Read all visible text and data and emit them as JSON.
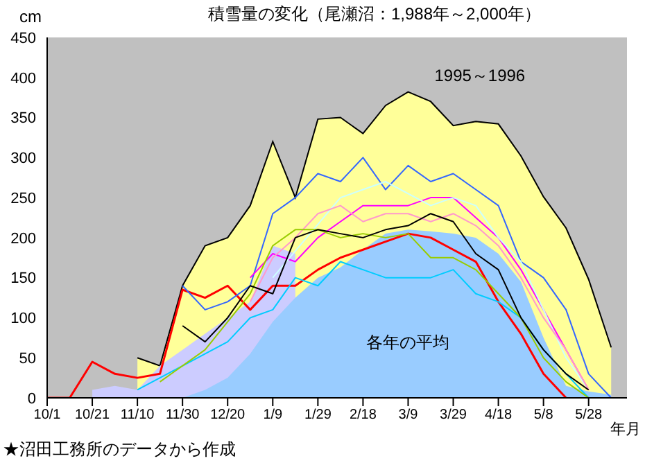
{
  "chart_data": {
    "type": "line",
    "title": "積雪量の変化（尾瀬沼：1,988年～2,000年）",
    "ylabel": "cm",
    "xlabel": "年月",
    "annotations": [
      "★沼田工務所のデータから作成"
    ],
    "categories": [
      "10/1",
      null,
      "10/21",
      null,
      "11/10",
      null,
      "11/30",
      null,
      "12/20",
      null,
      "1/9",
      null,
      "1/29",
      null,
      "2/18",
      null,
      "3/9",
      null,
      "3/29",
      null,
      "4/18",
      null,
      "5/8",
      null,
      "5/28",
      null
    ],
    "ylim": [
      0,
      450
    ],
    "yticks": [
      0,
      50,
      100,
      150,
      200,
      250,
      300,
      350,
      400,
      450
    ],
    "grid": false,
    "legend": false,
    "series": [
      {
        "type": "area",
        "name": "1995～1996",
        "color": "#ffff99",
        "values": [
          null,
          null,
          null,
          null,
          50,
          40,
          140,
          190,
          200,
          240,
          320,
          250,
          348,
          350,
          330,
          365,
          382,
          370,
          340,
          345,
          342,
          302,
          251,
          212,
          148,
          63
        ]
      },
      {
        "type": "area",
        "color": "#ccccff",
        "values": [
          null,
          null,
          10,
          15,
          10,
          40,
          60,
          80,
          100,
          120,
          190,
          180,
          null,
          null,
          null,
          null,
          null,
          null,
          null,
          null,
          null,
          null,
          null,
          null,
          null,
          null
        ]
      },
      {
        "type": "area",
        "name": "各年の平均",
        "color": "#99ccff",
        "values": [
          null,
          null,
          null,
          null,
          null,
          null,
          0,
          10,
          25,
          55,
          95,
          125,
          150,
          163,
          185,
          205,
          210,
          208,
          205,
          200,
          180,
          145,
          75,
          15,
          8,
          4
        ]
      },
      {
        "color": "#ff0000",
        "values": [
          0,
          0,
          45,
          30,
          25,
          30,
          135,
          125,
          140,
          110,
          140,
          140,
          160,
          175,
          185,
          195,
          205,
          200,
          185,
          170,
          120,
          80,
          30,
          0,
          null,
          null
        ]
      },
      {
        "color": "#3366ff",
        "values": [
          null,
          null,
          null,
          null,
          null,
          null,
          140,
          110,
          120,
          140,
          230,
          250,
          280,
          270,
          300,
          260,
          290,
          270,
          280,
          260,
          240,
          170,
          150,
          110,
          30,
          0
        ]
      },
      {
        "color": "#ff00ff",
        "values": [
          null,
          null,
          null,
          null,
          null,
          null,
          null,
          null,
          null,
          150,
          180,
          170,
          200,
          220,
          240,
          240,
          240,
          250,
          250,
          225,
          200,
          160,
          110,
          60,
          10,
          null
        ]
      },
      {
        "color": "#00ccff",
        "values": [
          null,
          null,
          null,
          null,
          10,
          null,
          40,
          null,
          70,
          100,
          110,
          150,
          140,
          170,
          160,
          150,
          150,
          150,
          160,
          130,
          120,
          100,
          60,
          30,
          0,
          null
        ]
      },
      {
        "color": "#ccffff",
        "values": [
          null,
          null,
          null,
          null,
          null,
          null,
          null,
          null,
          null,
          null,
          150,
          null,
          null,
          250,
          260,
          270,
          255,
          240,
          250,
          240,
          200,
          170,
          110,
          50,
          10,
          null
        ]
      },
      {
        "color": "#ff99cc",
        "values": [
          null,
          null,
          null,
          null,
          null,
          null,
          null,
          null,
          null,
          120,
          175,
          200,
          230,
          240,
          220,
          230,
          230,
          220,
          230,
          215,
          190,
          150,
          100,
          60,
          10,
          null
        ]
      },
      {
        "color": "#99cc00",
        "values": [
          null,
          null,
          null,
          null,
          null,
          20,
          null,
          60,
          null,
          130,
          190,
          210,
          210,
          200,
          205,
          200,
          205,
          175,
          175,
          160,
          130,
          100,
          50,
          20,
          0,
          null
        ]
      },
      {
        "color": "#000000",
        "values": [
          null,
          null,
          null,
          null,
          null,
          null,
          90,
          70,
          100,
          140,
          130,
          200,
          210,
          205,
          200,
          210,
          215,
          230,
          220,
          180,
          160,
          100,
          60,
          30,
          10,
          null
        ]
      }
    ]
  }
}
